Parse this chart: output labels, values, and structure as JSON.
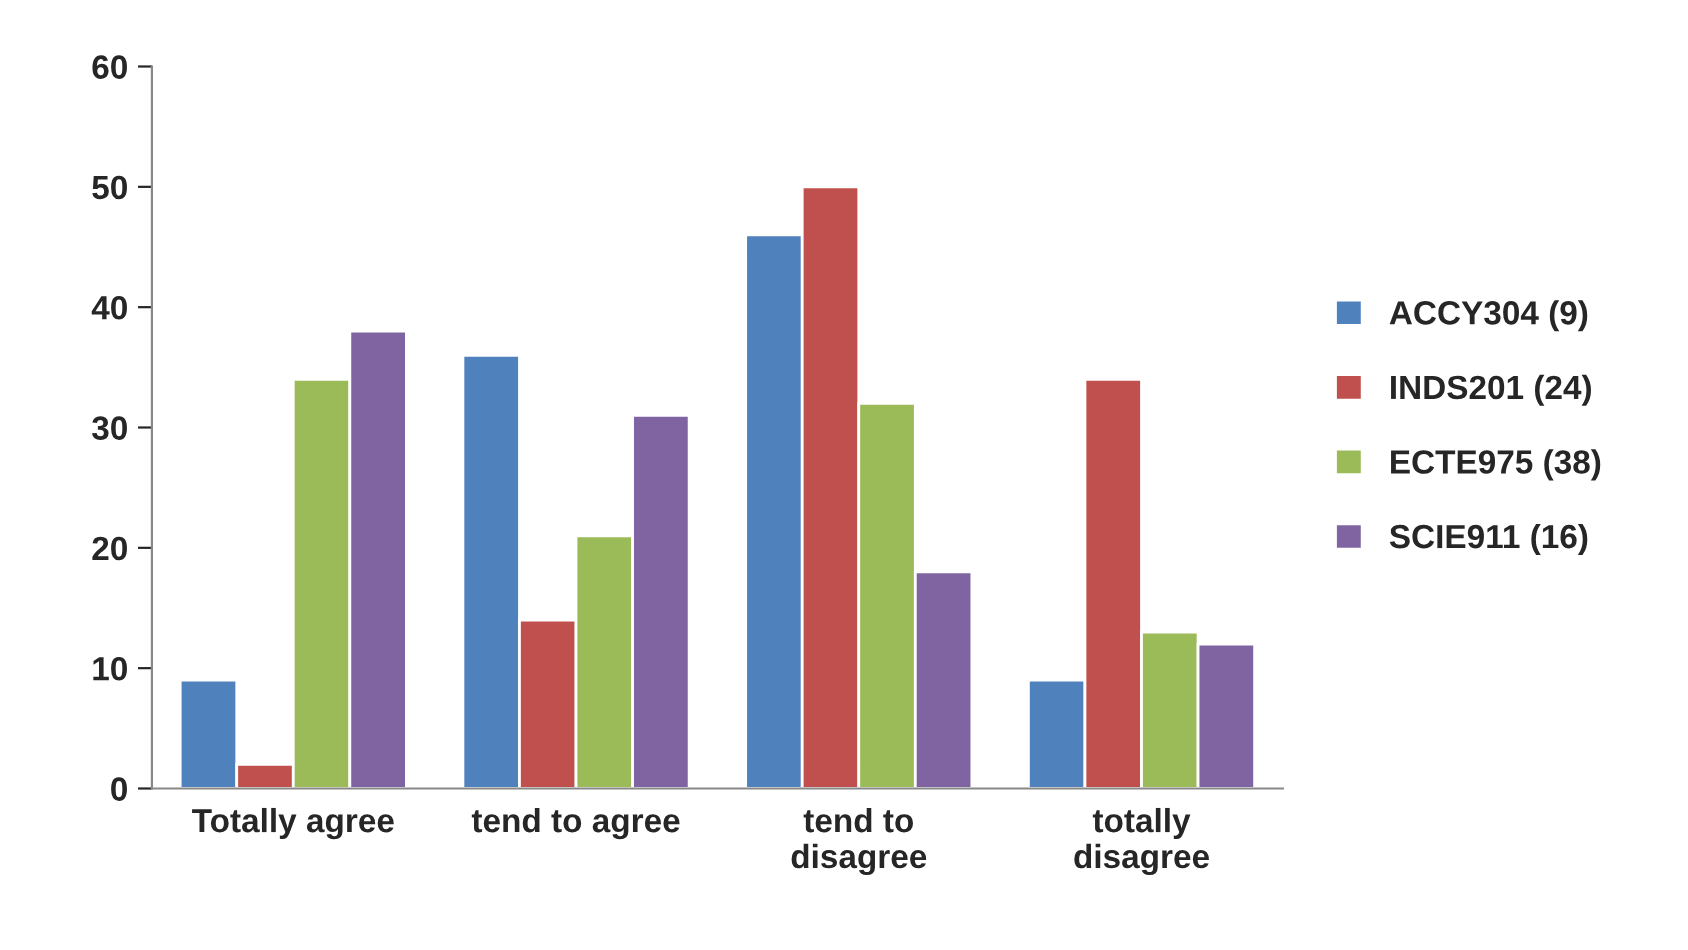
{
  "chart_data": {
    "type": "bar",
    "categories": [
      "Totally agree",
      "tend to agree",
      "tend to\ndisagree",
      "totally\ndisagree"
    ],
    "series": [
      {
        "name": "ACCY304 (9)",
        "color": "#4f81bd",
        "values": [
          9,
          36,
          46,
          9
        ]
      },
      {
        "name": "INDS201 (24)",
        "color": "#c0504d",
        "values": [
          2,
          14,
          50,
          34
        ]
      },
      {
        "name": "ECTE975 (38)",
        "color": "#9bbb59",
        "values": [
          34,
          21,
          32,
          13
        ]
      },
      {
        "name": "SCIE911 (16)",
        "color": "#8064a2",
        "values": [
          38,
          31,
          18,
          12
        ]
      }
    ],
    "ylim": [
      0,
      60
    ],
    "yticks": [
      0,
      10,
      20,
      30,
      40,
      50,
      60
    ],
    "grid": false,
    "legend": "right"
  }
}
